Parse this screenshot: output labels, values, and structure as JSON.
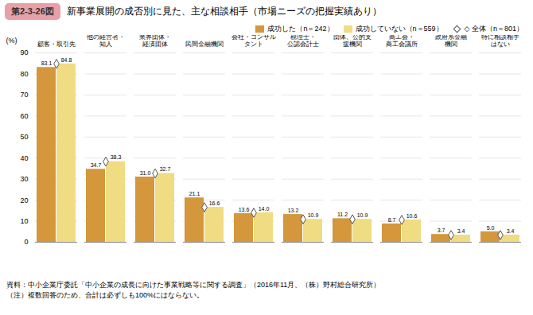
{
  "chart_data": {
    "type": "bar",
    "title": "新事業展開の成否別に見た、主な相談相手（市場ニーズの把握実績あり）",
    "annotations": [
      {
        "text": "第2-3-26図",
        "color": "#E8A0A8"
      },
      {
        "text": "資料：中小企業庁委託「中小企業の成長に向けた事業戦略等に関する調査」（2016年11月、（株）野村総合研究所）"
      },
      {
        "text": "（注）複数回答のため、合計は必ずしも100%にはならない。"
      }
    ],
    "ylabel": "(%)",
    "categories": [
      "顧客・取引先",
      "他の経営者・\n知人",
      "業界団体・\n経済団体",
      "民間金融機関",
      "マーケティング\n会社・コンサル\nタント",
      "税理士・\n公認会計士",
      "国、地方公共\n団体、公的支\n援機関",
      "商工会・\n商工会議所",
      "政府系金融\n機関",
      "特に相談相手\nはない"
    ],
    "series": [
      {
        "name": "成功した（n＝242）",
        "type": "bar",
        "color": "#D4973B",
        "data_labels": true,
        "values": [
          83.1,
          34.7,
          31.0,
          21.1,
          13.6,
          13.2,
          11.2,
          8.7,
          3.7,
          5.0
        ],
        "value_labels": [
          "83.1",
          "34.7",
          "31.0",
          "21.1",
          "13.6",
          "13.2",
          "11.2",
          "8.7",
          "3.7",
          "5.0"
        ]
      },
      {
        "name": "成功していない（n＝559）",
        "type": "bar",
        "color": "#F0DC82",
        "data_labels": true,
        "values": [
          84.8,
          38.3,
          32.7,
          16.6,
          14.0,
          10.9,
          10.9,
          10.6,
          3.4,
          3.4
        ],
        "value_labels": [
          "84.8",
          "38.3",
          "32.7",
          "16.6",
          "14.0",
          "10.9",
          "10.9",
          "10.6",
          "3.4",
          "3.4"
        ]
      },
      {
        "name": "◇ 全体（n＝801）",
        "type": "scatter",
        "marker": "diamond",
        "color": "#555555",
        "data_labels": false,
        "values": [
          84.8,
          38.3,
          32.7,
          16.6,
          14.0,
          10.9,
          10.9,
          10.6,
          3.4,
          3.4
        ]
      }
    ],
    "ylim": [
      0,
      90
    ],
    "yticks": [
      0,
      10,
      20,
      30,
      40,
      50,
      60,
      70,
      80,
      90
    ],
    "grid": true,
    "legend": "upper right"
  }
}
